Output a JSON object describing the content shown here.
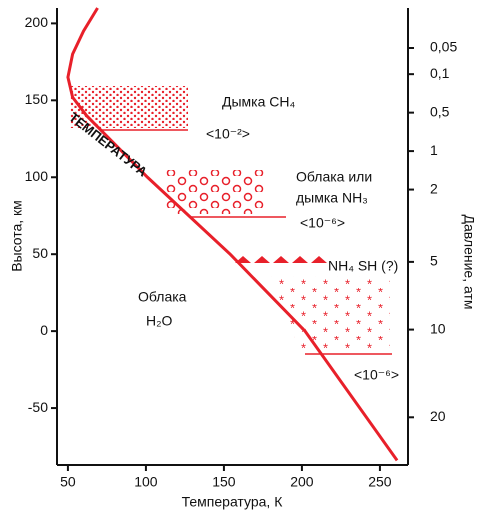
{
  "chart_data": {
    "type": "line",
    "xlabel": "Температура, К",
    "ylabel": "Высота, км",
    "series": [
      {
        "name": "ТЕМПЕРАТУРА",
        "color": "#e8202a",
        "x": [
          69,
          60,
          53,
          50,
          53,
          62,
          101,
          154,
          202,
          261
        ],
        "values": [
          210,
          195,
          180,
          165,
          152,
          140,
          100,
          50,
          0,
          -84
        ]
      }
    ],
    "xlim": [
      43,
      268
    ],
    "xticks": [
      50,
      100,
      150,
      200,
      250
    ],
    "ylim": [
      -87,
      210
    ],
    "yticks": [
      -50,
      0,
      50,
      100,
      150,
      200
    ],
    "pressure_axis": {
      "label": "Давление, атм",
      "ticks": [
        {
          "altitude": 184,
          "label": "0,05"
        },
        {
          "altitude": 167,
          "label": "0,1"
        },
        {
          "altitude": 142,
          "label": "0,5"
        },
        {
          "altitude": 117,
          "label": "1"
        },
        {
          "altitude": 92,
          "label": "2"
        },
        {
          "altitude": 45,
          "label": "5"
        },
        {
          "altitude": 1,
          "label": "10"
        },
        {
          "altitude": -56,
          "label": "20"
        }
      ]
    },
    "annotations": [
      "Дымка CH₄",
      "<10⁻²>",
      "Облака или",
      "дымка NH₃",
      "<10⁻⁶>",
      "NH₄ SH (?)",
      "Облака",
      "H₂O",
      "<10⁻⁶>"
    ]
  }
}
